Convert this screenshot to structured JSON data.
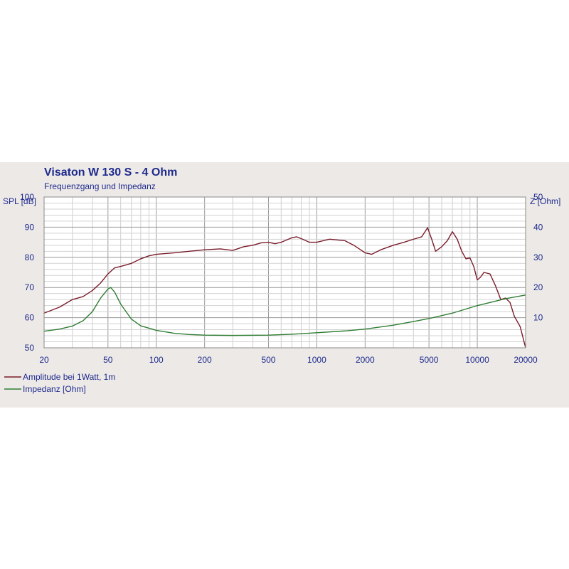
{
  "chart_data": {
    "type": "line",
    "title": "Visaton W 130 S - 4 Ohm",
    "subtitle": "Frequenzgang und Impedanz",
    "xscale": "log",
    "xlim": [
      20,
      20000
    ],
    "x_ticks": [
      "20",
      "50",
      "100",
      "200",
      "500",
      "1000",
      "2000",
      "5000",
      "10000",
      "20000"
    ],
    "y_left": {
      "label": "SPL [dB]",
      "lim": [
        50,
        100
      ],
      "ticks": [
        "50",
        "60",
        "70",
        "80",
        "90",
        "100"
      ]
    },
    "y_right": {
      "label": "Z [Ohm]",
      "lim": [
        0,
        50
      ],
      "ticks": [
        "10",
        "20",
        "30",
        "40",
        "50"
      ]
    },
    "grid": true,
    "legend_position": "bottom-left",
    "series": [
      {
        "name": "Amplitude bei 1Watt, 1m",
        "axis": "left",
        "color": "#7a1c2a",
        "points": [
          [
            20,
            61.5
          ],
          [
            25,
            63.5
          ],
          [
            30,
            66
          ],
          [
            35,
            67
          ],
          [
            40,
            69
          ],
          [
            45,
            71.5
          ],
          [
            50,
            74.5
          ],
          [
            55,
            76.5
          ],
          [
            60,
            77
          ],
          [
            70,
            78
          ],
          [
            80,
            79.5
          ],
          [
            90,
            80.5
          ],
          [
            100,
            81
          ],
          [
            130,
            81.5
          ],
          [
            160,
            82
          ],
          [
            200,
            82.5
          ],
          [
            250,
            82.8
          ],
          [
            300,
            82.3
          ],
          [
            350,
            83.5
          ],
          [
            400,
            84
          ],
          [
            450,
            84.8
          ],
          [
            500,
            85
          ],
          [
            550,
            84.5
          ],
          [
            600,
            85
          ],
          [
            700,
            86.5
          ],
          [
            750,
            86.8
          ],
          [
            800,
            86.2
          ],
          [
            900,
            85
          ],
          [
            1000,
            85
          ],
          [
            1200,
            86
          ],
          [
            1500,
            85.5
          ],
          [
            1700,
            84
          ],
          [
            2000,
            81.5
          ],
          [
            2200,
            81
          ],
          [
            2500,
            82.5
          ],
          [
            3000,
            84
          ],
          [
            3500,
            85
          ],
          [
            4000,
            86
          ],
          [
            4500,
            86.8
          ],
          [
            4900,
            89.8
          ],
          [
            5200,
            86
          ],
          [
            5500,
            82
          ],
          [
            6000,
            83.5
          ],
          [
            6500,
            85.5
          ],
          [
            7000,
            88.5
          ],
          [
            7500,
            86
          ],
          [
            8000,
            82
          ],
          [
            8500,
            79.5
          ],
          [
            9000,
            79.8
          ],
          [
            9500,
            77
          ],
          [
            10000,
            72.5
          ],
          [
            10500,
            73.5
          ],
          [
            11000,
            75
          ],
          [
            12000,
            74.5
          ],
          [
            13000,
            70.5
          ],
          [
            14000,
            66
          ],
          [
            15000,
            66.5
          ],
          [
            16000,
            65
          ],
          [
            17000,
            60.5
          ],
          [
            18500,
            57
          ],
          [
            20000,
            50
          ]
        ]
      },
      {
        "name": "Impedanz [Ohm]",
        "axis": "right",
        "color": "#2e7d32",
        "points": [
          [
            20,
            5.5
          ],
          [
            25,
            6.2
          ],
          [
            30,
            7.2
          ],
          [
            35,
            9
          ],
          [
            40,
            12
          ],
          [
            45,
            16.5
          ],
          [
            50,
            19.5
          ],
          [
            52,
            20
          ],
          [
            55,
            18.5
          ],
          [
            60,
            14.5
          ],
          [
            70,
            9.5
          ],
          [
            80,
            7.3
          ],
          [
            100,
            5.8
          ],
          [
            130,
            4.8
          ],
          [
            160,
            4.4
          ],
          [
            200,
            4.2
          ],
          [
            300,
            4.1
          ],
          [
            500,
            4.2
          ],
          [
            700,
            4.5
          ],
          [
            1000,
            5
          ],
          [
            1500,
            5.6
          ],
          [
            2000,
            6.2
          ],
          [
            3000,
            7.5
          ],
          [
            4000,
            8.7
          ],
          [
            5000,
            9.7
          ],
          [
            7000,
            11.5
          ],
          [
            10000,
            14
          ],
          [
            15000,
            16.3
          ],
          [
            20000,
            17.5
          ]
        ]
      }
    ]
  }
}
